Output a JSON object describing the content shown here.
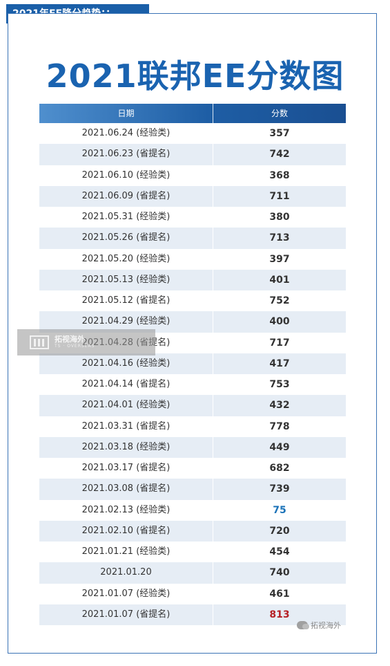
{
  "section_label": "2021年EE降分趋势：：",
  "title": "2021联邦EE分数图",
  "table": {
    "headers": {
      "date": "日期",
      "score": "分数"
    },
    "rows": [
      {
        "date": "2021.06.24 (经验类)",
        "score": "357"
      },
      {
        "date": "2021.06.23 (省提名)",
        "score": "742"
      },
      {
        "date": "2021.06.10 (经验类)",
        "score": "368"
      },
      {
        "date": "2021.06.09 (省提名)",
        "score": "711"
      },
      {
        "date": "2021.05.31 (经验类)",
        "score": "380"
      },
      {
        "date": "2021.05.26 (省提名)",
        "score": "713"
      },
      {
        "date": "2021.05.20 (经验类)",
        "score": "397"
      },
      {
        "date": "2021.05.13 (经验类)",
        "score": "401"
      },
      {
        "date": "2021.05.12 (省提名)",
        "score": "752"
      },
      {
        "date": "2021.04.29 (经验类)",
        "score": "400"
      },
      {
        "date": "2021.04.28 (省提名)",
        "score": "717"
      },
      {
        "date": "2021.04.16 (经验类)",
        "score": "417"
      },
      {
        "date": "2021.04.14 (省提名)",
        "score": "753"
      },
      {
        "date": "2021.04.01 (经验类)",
        "score": "432"
      },
      {
        "date": "2021.03.31 (省提名)",
        "score": "778"
      },
      {
        "date": "2021.03.18 (经验类)",
        "score": "449"
      },
      {
        "date": "2021.03.17 (省提名)",
        "score": "682"
      },
      {
        "date": "2021.03.08 (省提名)",
        "score": "739"
      },
      {
        "date": "2021.02.13 (经验类)",
        "score": "75"
      },
      {
        "date": "2021.02.10 (省提名)",
        "score": "720"
      },
      {
        "date": "2021.01.21 (经验类)",
        "score": "454"
      },
      {
        "date": "2021.01.20",
        "score": "740"
      },
      {
        "date": "2021.01.07 (经验类)",
        "score": "461"
      },
      {
        "date": "2021.01.07 (省提名)",
        "score": "813"
      }
    ]
  },
  "watermark_center": {
    "text": "拓视海外",
    "sub": "TS · OVERSEAS"
  },
  "watermark_corner": {
    "text": "拓视海外"
  },
  "colors": {
    "accent": "#1a5fa8",
    "highlight_low": "#1a72b8",
    "highlight_high": "#b52025",
    "row_alt": "#e6edf5"
  }
}
